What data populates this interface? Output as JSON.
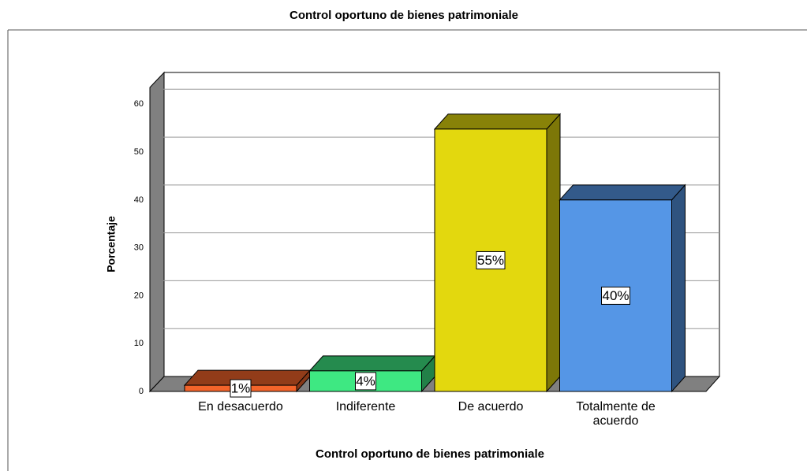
{
  "chart_data": {
    "type": "bar3d",
    "title": "Control oportuno de bienes patrimoniale",
    "xlabel": "Control oportuno de bienes patrimoniale",
    "ylabel": "Porcentaje",
    "categories": [
      "En desacuerdo",
      "Indiferente",
      "De acuerdo",
      "Totalmente de acuerdo"
    ],
    "values": [
      1.3,
      4.3,
      54.8,
      40
    ],
    "value_labels": [
      "1%",
      "4%",
      "55%",
      "40%"
    ],
    "colors": [
      "#f4642a",
      "#3ee882",
      "#e3d80e",
      "#5596e6"
    ],
    "ylim": [
      0,
      63.5
    ],
    "yticks": [
      0,
      10,
      20,
      30,
      40,
      50,
      60
    ],
    "grid": true
  }
}
